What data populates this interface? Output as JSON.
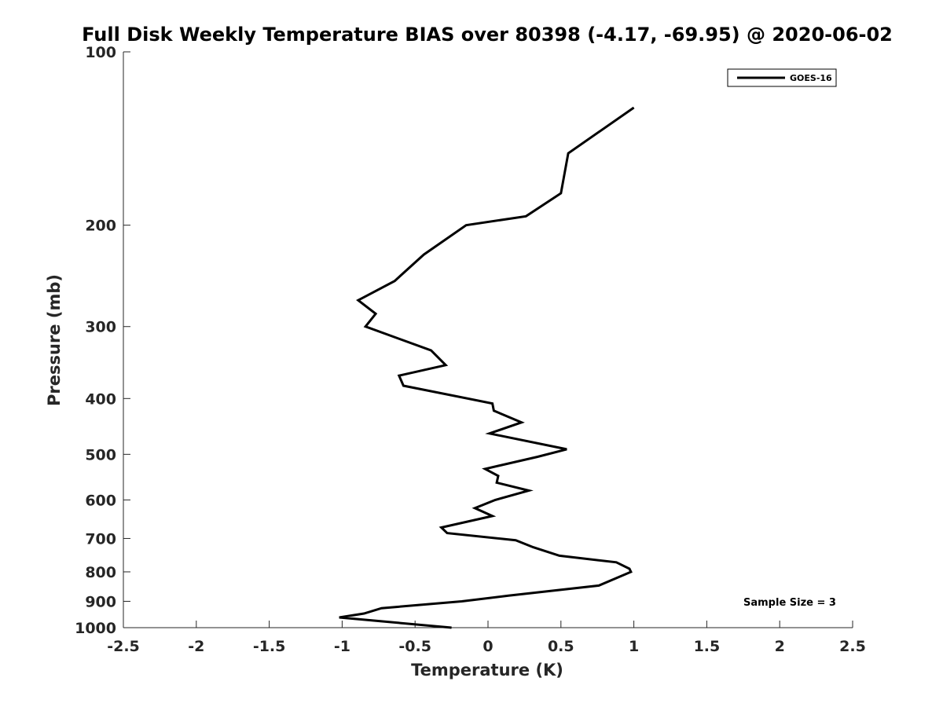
{
  "chart_data": {
    "type": "line",
    "title": "Full Disk Weekly Temperature BIAS over 80398 (-4.17, -69.95) @ 2020-06-02",
    "xlabel": "Temperature (K)",
    "ylabel": "Pressure (mb)",
    "xlim": [
      -2.5,
      2.5
    ],
    "ylim": [
      1000,
      100
    ],
    "yscale": "log",
    "x_ticks": [
      -2.5,
      -2,
      -1.5,
      -1,
      -0.5,
      0,
      0.5,
      1,
      1.5,
      2,
      2.5
    ],
    "x_tick_labels": [
      "-2.5",
      "-2",
      "-1.5",
      "-1",
      "-0.5",
      "0",
      "0.5",
      "1",
      "1.5",
      "2",
      "2.5"
    ],
    "y_ticks": [
      100,
      200,
      300,
      400,
      500,
      600,
      700,
      800,
      900,
      1000
    ],
    "y_tick_labels": [
      "100",
      "200",
      "300",
      "400",
      "500",
      "600",
      "700",
      "800",
      "900",
      "1000"
    ],
    "grid": false,
    "legend_position": "top-right",
    "annotation": "Sample Size = 3",
    "series": [
      {
        "name": "GOES-16",
        "color": "#000000",
        "points": [
          [
            1.0,
            125
          ],
          [
            0.55,
            150
          ],
          [
            0.5,
            176
          ],
          [
            0.26,
            193
          ],
          [
            -0.15,
            200
          ],
          [
            -0.44,
            225
          ],
          [
            -0.64,
            250
          ],
          [
            -0.89,
            270
          ],
          [
            -0.77,
            285
          ],
          [
            -0.84,
            300
          ],
          [
            -0.39,
            330
          ],
          [
            -0.29,
            350
          ],
          [
            -0.61,
            365
          ],
          [
            -0.58,
            380
          ],
          [
            0.03,
            408
          ],
          [
            0.04,
            420
          ],
          [
            0.23,
            440
          ],
          [
            0.01,
            460
          ],
          [
            0.54,
            490
          ],
          [
            0.34,
            505
          ],
          [
            -0.02,
            530
          ],
          [
            0.07,
            545
          ],
          [
            0.06,
            560
          ],
          [
            0.28,
            578
          ],
          [
            0.05,
            600
          ],
          [
            -0.09,
            620
          ],
          [
            0.03,
            640
          ],
          [
            -0.32,
            670
          ],
          [
            -0.28,
            685
          ],
          [
            0.19,
            705
          ],
          [
            0.31,
            725
          ],
          [
            0.49,
            750
          ],
          [
            0.88,
            770
          ],
          [
            0.97,
            790
          ],
          [
            0.98,
            800
          ],
          [
            0.76,
            845
          ],
          [
            0.14,
            880
          ],
          [
            -0.18,
            900
          ],
          [
            -0.73,
            925
          ],
          [
            -0.85,
            945
          ],
          [
            -1.02,
            960
          ],
          [
            -0.73,
            975
          ],
          [
            -0.25,
            1000
          ]
        ]
      }
    ]
  }
}
